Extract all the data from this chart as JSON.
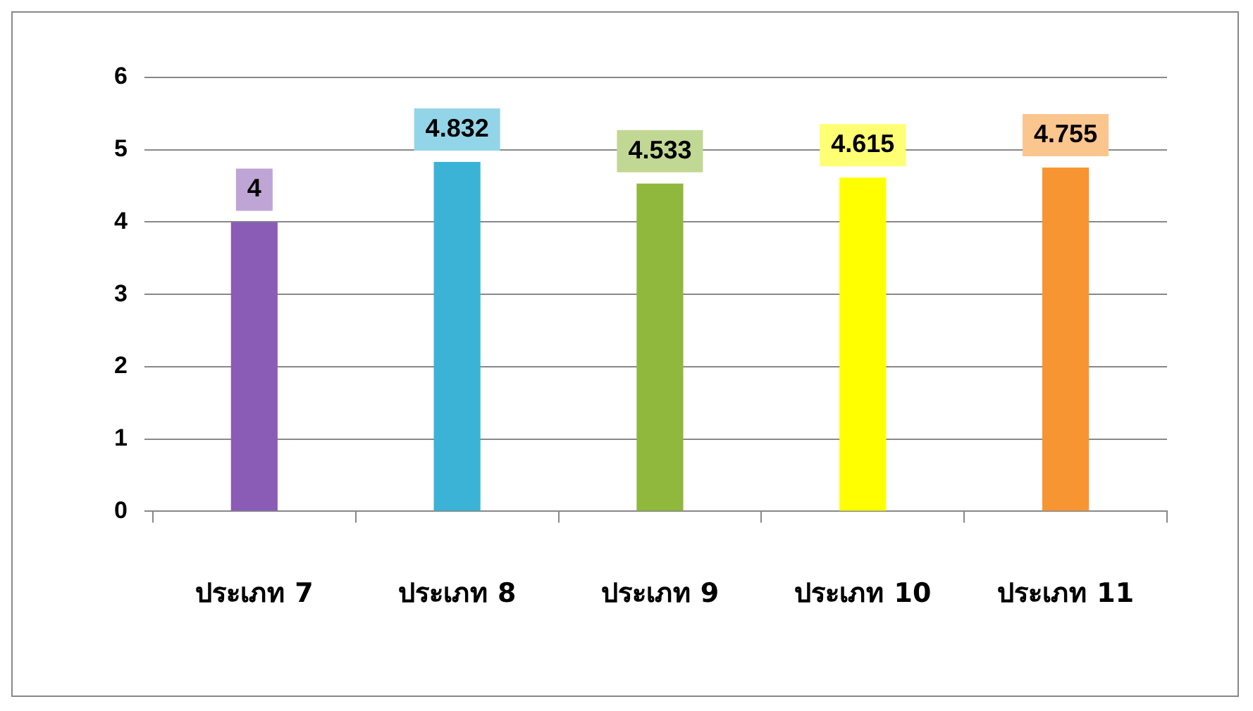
{
  "chart_data": {
    "type": "bar",
    "categories": [
      "ประเภท 7",
      "ประเภท 8",
      "ประเภท 9",
      "ประเภท 10",
      "ประเภท 11"
    ],
    "values": [
      4,
      4.832,
      4.533,
      4.615,
      4.755
    ],
    "colors": [
      "#8a5cb5",
      "#3bb3d6",
      "#8fb83c",
      "#ffff00",
      "#f79532"
    ],
    "ylim": [
      0,
      6
    ],
    "yticks": [
      0,
      1,
      2,
      3,
      4,
      5,
      6
    ],
    "grid": "y",
    "legend": false,
    "data_labels": true
  }
}
